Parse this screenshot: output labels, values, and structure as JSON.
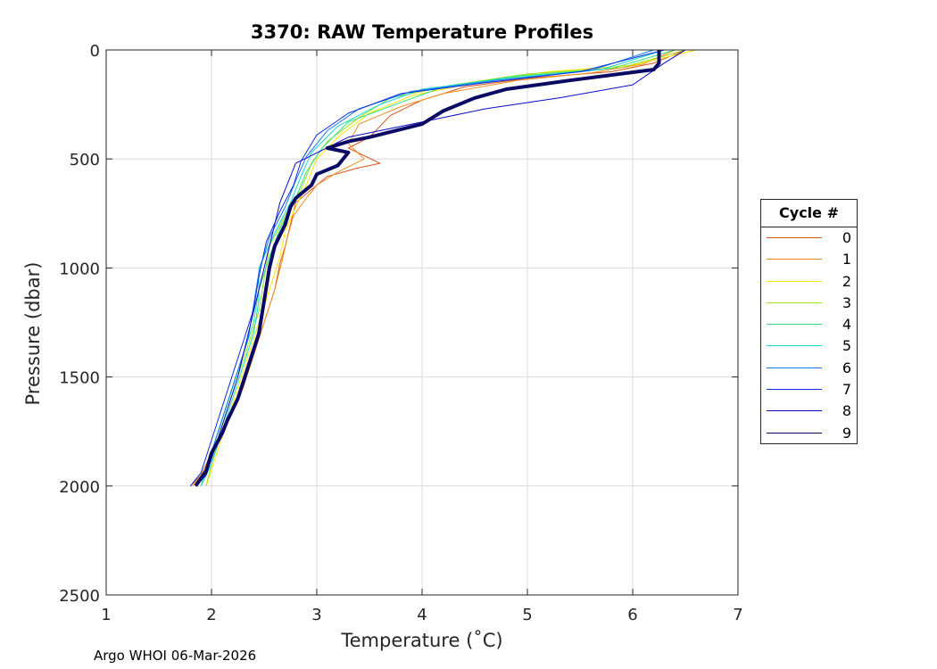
{
  "chart_data": {
    "type": "line",
    "title": "3370: RAW Temperature Profiles",
    "xlabel": "Temperature (˚C)",
    "ylabel": "Pressure (dbar)",
    "xlim": [
      1,
      7
    ],
    "ylim": [
      0,
      2500
    ],
    "y_reversed": true,
    "grid": true,
    "xticks": [
      1,
      2,
      3,
      4,
      5,
      6,
      7
    ],
    "yticks": [
      0,
      500,
      1000,
      1500,
      2000,
      2500
    ],
    "legend_title": "Cycle #",
    "legend_position": "right",
    "series": [
      {
        "name": "0",
        "color": "#D95319",
        "width": 1,
        "temperature": [
          6.5,
          6.2,
          5.8,
          5.0,
          4.4,
          4.0,
          3.7,
          3.5,
          3.3,
          3.6,
          3.4,
          3.1,
          2.95,
          2.8,
          2.75,
          2.7,
          2.65,
          2.6,
          2.5,
          2.4,
          2.3,
          2.2,
          2.1,
          2.0,
          1.9,
          1.8
        ],
        "pressure": [
          0,
          60,
          100,
          130,
          170,
          230,
          300,
          400,
          450,
          520,
          540,
          580,
          640,
          700,
          800,
          900,
          980,
          1100,
          1250,
          1400,
          1550,
          1650,
          1750,
          1850,
          1950,
          2000
        ]
      },
      {
        "name": "1",
        "color": "#F28E21",
        "width": 1,
        "temperature": [
          6.4,
          6.1,
          5.6,
          4.9,
          4.2,
          3.8,
          3.4,
          3.3,
          3.45,
          3.2,
          3.0,
          2.9,
          2.78,
          2.72,
          2.68,
          2.6,
          2.5,
          2.4,
          2.3,
          2.2,
          2.1,
          2.0,
          1.9,
          1.82
        ],
        "pressure": [
          0,
          65,
          105,
          140,
          200,
          260,
          340,
          430,
          500,
          560,
          620,
          680,
          760,
          860,
          950,
          1100,
          1250,
          1400,
          1550,
          1650,
          1750,
          1850,
          1950,
          2000
        ]
      },
      {
        "name": "2",
        "color": "#FFE600",
        "width": 1,
        "temperature": [
          6.6,
          6.0,
          5.2,
          4.5,
          3.9,
          3.5,
          3.2,
          3.0,
          2.9,
          2.8,
          2.7,
          2.65,
          2.55,
          2.45,
          2.35,
          2.25,
          2.15,
          2.05,
          1.95
        ],
        "pressure": [
          0,
          70,
          100,
          150,
          210,
          290,
          400,
          500,
          620,
          720,
          830,
          950,
          1100,
          1250,
          1400,
          1550,
          1700,
          1850,
          2000
        ]
      },
      {
        "name": "3",
        "color": "#9FE01C",
        "width": 1,
        "temperature": [
          6.5,
          5.9,
          5.0,
          4.3,
          3.7,
          3.4,
          3.1,
          2.95,
          2.85,
          2.7,
          2.55,
          2.5,
          2.45,
          2.35,
          2.25,
          2.15,
          2.05,
          1.95
        ],
        "pressure": [
          0,
          80,
          110,
          160,
          220,
          310,
          420,
          520,
          640,
          760,
          900,
          1050,
          1200,
          1350,
          1500,
          1650,
          1800,
          2000
        ]
      },
      {
        "name": "4",
        "color": "#2DE07A",
        "width": 1,
        "temperature": [
          6.4,
          5.8,
          4.9,
          4.2,
          3.8,
          3.3,
          3.05,
          2.9,
          2.8,
          2.65,
          2.55,
          2.45,
          2.4,
          2.3,
          2.2,
          2.1,
          2.0,
          1.9
        ],
        "pressure": [
          0,
          85,
          120,
          170,
          240,
          330,
          450,
          560,
          680,
          820,
          950,
          1100,
          1250,
          1400,
          1550,
          1700,
          1850,
          2000
        ]
      },
      {
        "name": "5",
        "color": "#18D6D0",
        "width": 1,
        "temperature": [
          6.3,
          5.7,
          4.8,
          4.0,
          3.6,
          3.2,
          2.95,
          2.85,
          2.75,
          2.6,
          2.45,
          2.45,
          2.4,
          2.3,
          2.2,
          2.1,
          2.0,
          1.9
        ],
        "pressure": [
          0,
          90,
          130,
          180,
          250,
          350,
          470,
          580,
          700,
          840,
          1000,
          1150,
          1300,
          1450,
          1600,
          1750,
          1900,
          2000
        ]
      },
      {
        "name": "6",
        "color": "#1279F2",
        "width": 1,
        "temperature": [
          6.2,
          5.6,
          4.7,
          3.9,
          3.4,
          3.1,
          2.9,
          2.8,
          2.7,
          2.55,
          2.45,
          2.4,
          2.35,
          2.25,
          2.15,
          2.05,
          1.95,
          1.85
        ],
        "pressure": [
          0,
          95,
          140,
          190,
          270,
          370,
          490,
          600,
          720,
          860,
          1020,
          1170,
          1320,
          1470,
          1620,
          1770,
          1920,
          2000
        ]
      },
      {
        "name": "7",
        "color": "#0B2EE0",
        "width": 1,
        "temperature": [
          6.3,
          5.5,
          4.6,
          3.8,
          3.3,
          3.0,
          2.85,
          2.78,
          2.65,
          2.52,
          2.45,
          2.4,
          2.3,
          2.2,
          2.1,
          2.0,
          1.9,
          1.8
        ],
        "pressure": [
          0,
          100,
          150,
          200,
          290,
          390,
          510,
          620,
          740,
          880,
          1040,
          1190,
          1340,
          1490,
          1640,
          1790,
          1940,
          2000
        ]
      },
      {
        "name": "8",
        "color": "#0A0ACB",
        "width": 1,
        "temperature": [
          6.5,
          6.3,
          6.0,
          5.3,
          4.6,
          4.0,
          3.3,
          2.8,
          2.65,
          2.55,
          2.45,
          2.35,
          2.25,
          2.15,
          2.05,
          1.95,
          1.85
        ],
        "pressure": [
          0,
          60,
          160,
          220,
          270,
          330,
          400,
          520,
          700,
          900,
          1100,
          1300,
          1500,
          1650,
          1800,
          1950,
          2000
        ]
      },
      {
        "name": "9",
        "color": "#0A0A64",
        "width": 4,
        "temperature": [
          6.25,
          6.25,
          6.2,
          5.4,
          4.8,
          4.5,
          4.2,
          4.0,
          3.75,
          3.5,
          3.3,
          3.1,
          3.3,
          3.2,
          3.0,
          2.95,
          2.8,
          2.75,
          2.7,
          2.6,
          2.55,
          2.5,
          2.45,
          2.35,
          2.25,
          2.15,
          2.1,
          2.0,
          1.95,
          1.85
        ],
        "pressure": [
          0,
          60,
          90,
          140,
          180,
          220,
          280,
          340,
          370,
          400,
          420,
          450,
          470,
          530,
          570,
          620,
          680,
          720,
          800,
          900,
          1000,
          1150,
          1300,
          1450,
          1600,
          1700,
          1760,
          1850,
          1930,
          2000
        ]
      }
    ]
  },
  "footer": {
    "text": "Argo WHOI 06-Mar-2026"
  }
}
